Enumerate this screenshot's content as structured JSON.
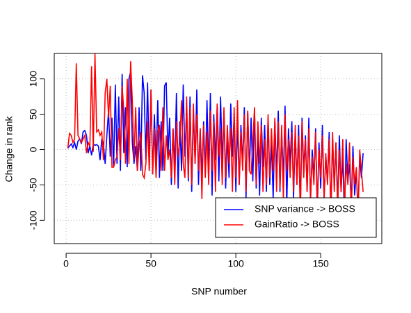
{
  "chart_data": {
    "type": "line",
    "xlabel": "SNP number",
    "ylabel": "Change in rank",
    "x": [
      1,
      2,
      3,
      4,
      5,
      6,
      7,
      8,
      9,
      10,
      11,
      12,
      13,
      14,
      15,
      16,
      17,
      18,
      19,
      20,
      21,
      22,
      23,
      24,
      25,
      26,
      27,
      28,
      29,
      30,
      31,
      32,
      33,
      34,
      35,
      36,
      37,
      38,
      39,
      40,
      41,
      42,
      43,
      44,
      45,
      46,
      47,
      48,
      49,
      50,
      51,
      52,
      53,
      54,
      55,
      56,
      57,
      58,
      59,
      60,
      61,
      62,
      63,
      64,
      65,
      66,
      67,
      68,
      69,
      70,
      71,
      72,
      73,
      74,
      75,
      76,
      77,
      78,
      79,
      80,
      81,
      82,
      83,
      84,
      85,
      86,
      87,
      88,
      89,
      90,
      91,
      92,
      93,
      94,
      95,
      96,
      97,
      98,
      99,
      100,
      101,
      102,
      103,
      104,
      105,
      106,
      107,
      108,
      109,
      110,
      111,
      112,
      113,
      114,
      115,
      116,
      117,
      118,
      119,
      120,
      121,
      122,
      123,
      124,
      125,
      126,
      127,
      128,
      129,
      130,
      131,
      132,
      133,
      134,
      135,
      136,
      137,
      138,
      139,
      140,
      141,
      142,
      143,
      144,
      145,
      146,
      147,
      148,
      149,
      150,
      151,
      152,
      153,
      154,
      155,
      156,
      157,
      158,
      159,
      160,
      161,
      162,
      163,
      164,
      165,
      166,
      167,
      168,
      169,
      170,
      171,
      172,
      173,
      174,
      175
    ],
    "series": [
      {
        "name": "SNP variance -> BOSS",
        "color": "#0000ff",
        "values": [
          2,
          5,
          8,
          3,
          10,
          0,
          12,
          15,
          8,
          25,
          27,
          20,
          -5,
          5,
          -8,
          8,
          6,
          7,
          5,
          -15,
          15,
          8,
          -20,
          20,
          55,
          -10,
          45,
          -25,
          92,
          -20,
          75,
          -30,
          107,
          -5,
          60,
          -25,
          100,
          110,
          10,
          -20,
          5,
          -30,
          60,
          -30,
          105,
          80,
          -15,
          95,
          -30,
          85,
          -35,
          50,
          -20,
          70,
          -40,
          40,
          -30,
          90,
          95,
          -10,
          45,
          -50,
          30,
          -25,
          80,
          -55,
          40,
          -30,
          92,
          -10,
          60,
          -45,
          75,
          -60,
          55,
          -20,
          85,
          -50,
          30,
          -40,
          40,
          -35,
          70,
          -30,
          80,
          -65,
          50,
          -15,
          60,
          -45,
          75,
          -20,
          55,
          -55,
          20,
          -40,
          65,
          -10,
          50,
          -60,
          40,
          -50,
          35,
          -20,
          60,
          -70,
          55,
          -30,
          45,
          -45,
          58,
          -55,
          20,
          -65,
          45,
          -25,
          35,
          -60,
          45,
          -50,
          10,
          -70,
          40,
          -35,
          55,
          -60,
          25,
          -40,
          62,
          -80,
          30,
          -20,
          40,
          -70,
          25,
          -50,
          35,
          -85,
          45,
          -30,
          20,
          -60,
          45,
          -75,
          0,
          -40,
          30,
          -90,
          10,
          -55,
          35,
          -70,
          -10,
          -45,
          25,
          -95,
          15,
          -50,
          10,
          -80,
          20,
          -60,
          -10,
          -100,
          15,
          -45,
          -20,
          -80,
          5,
          -65,
          -30,
          -90,
          -10,
          -40,
          -5
        ]
      },
      {
        "name": "GainRatio -> BOSS",
        "color": "#ff0000",
        "values": [
          2,
          23,
          20,
          10,
          15,
          122,
          20,
          15,
          10,
          15,
          20,
          -5,
          10,
          5,
          118,
          -3,
          136,
          25,
          28,
          20,
          25,
          -15,
          80,
          100,
          45,
          90,
          -25,
          -25,
          -15,
          -10,
          30,
          -15,
          90,
          55,
          -20,
          100,
          -20,
          125,
          70,
          -15,
          60,
          -30,
          5,
          25,
          -35,
          -40,
          -20,
          40,
          -30,
          85,
          -35,
          30,
          -40,
          25,
          35,
          -30,
          60,
          -30,
          20,
          -15,
          0,
          -40,
          30,
          -50,
          40,
          -10,
          10,
          70,
          -20,
          -40,
          75,
          -40,
          60,
          -50,
          65,
          -20,
          50,
          -30,
          30,
          -70,
          35,
          -40,
          25,
          -50,
          55,
          -30,
          40,
          -60,
          65,
          -10,
          30,
          -50,
          60,
          -40,
          35,
          -20,
          30,
          -60,
          60,
          -40,
          70,
          -50,
          25,
          -30,
          50,
          -60,
          55,
          -30,
          -35,
          10,
          60,
          -50,
          40,
          -20,
          35,
          -60,
          15,
          -50,
          50,
          -40,
          30,
          -30,
          45,
          -60,
          40,
          -55,
          35,
          -70,
          50,
          -30,
          15,
          -40,
          25,
          -60,
          35,
          -50,
          20,
          -95,
          40,
          -40,
          15,
          -60,
          30,
          -70,
          -10,
          -50,
          25,
          -80,
          0,
          -40,
          20,
          -70,
          -5,
          -50,
          15,
          -90,
          25,
          -60,
          10,
          -85,
          0,
          -60,
          15,
          -80,
          -20,
          -50,
          10,
          -90,
          -10,
          -50,
          -25,
          -95,
          0,
          -30,
          -60
        ]
      }
    ],
    "xlim": [
      -7,
      186
    ],
    "ylim": [
      -133,
      136
    ],
    "xticks": [
      0,
      50,
      100,
      150
    ],
    "yticks": [
      -100,
      -50,
      0,
      50,
      100
    ],
    "grid": true,
    "legend": "bottomright"
  }
}
